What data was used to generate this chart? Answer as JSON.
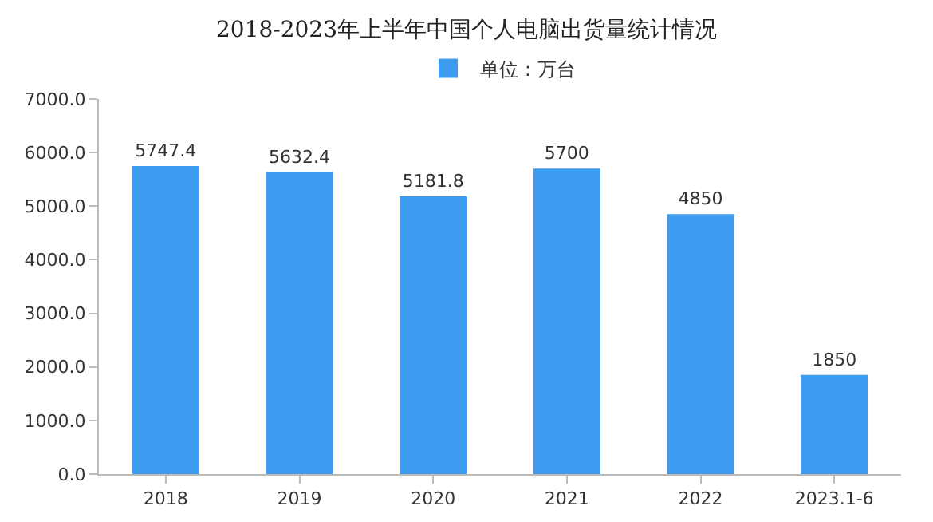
{
  "chart_data": {
    "type": "bar",
    "title": "2018-2023年上半年中国个人电脑出货量统计情况",
    "categories": [
      "2018",
      "2019",
      "2020",
      "2021",
      "2022",
      "2023.1-6"
    ],
    "series": [
      {
        "name": "单位：万台",
        "color": "#3d9cf0",
        "values": [
          5747.4,
          5632.4,
          5181.8,
          5700,
          4850,
          1850
        ]
      }
    ],
    "ylim": [
      0,
      7000
    ],
    "yticks": [
      {
        "value": 0,
        "label": "0.0"
      },
      {
        "value": 1000,
        "label": "1000.0"
      },
      {
        "value": 2000,
        "label": "2000.0"
      },
      {
        "value": 3000,
        "label": "3000.0"
      },
      {
        "value": 4000,
        "label": "4000.0"
      },
      {
        "value": 5000,
        "label": "5000.0"
      },
      {
        "value": 6000,
        "label": "6000.0"
      },
      {
        "value": 7000,
        "label": "7000.0"
      }
    ],
    "data_labels": true,
    "legend": "top",
    "grid": false
  }
}
